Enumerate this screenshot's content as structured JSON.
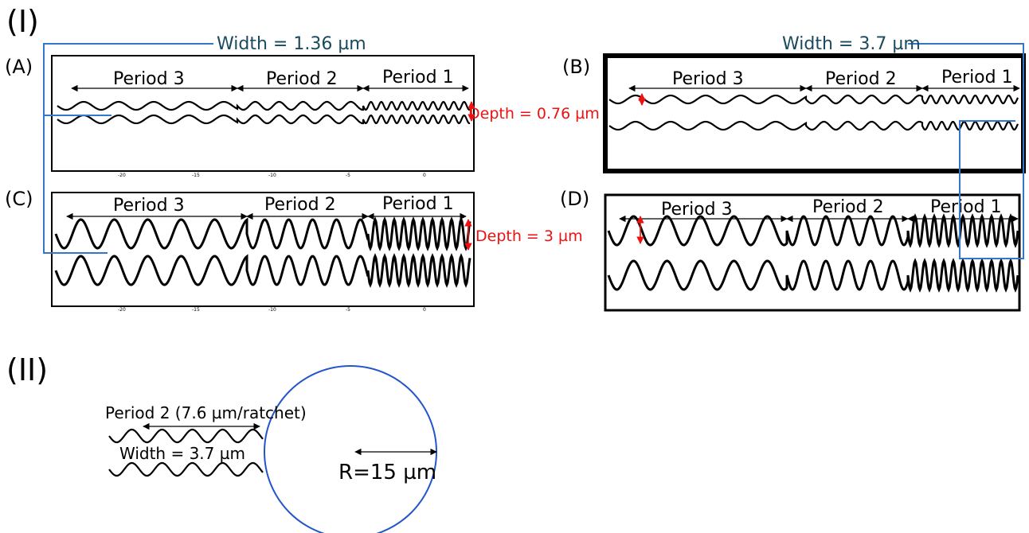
{
  "figure": {
    "section_I_label": "(I)",
    "section_II_label": "(II)",
    "panels": [
      {
        "id": "A",
        "label": "(A)",
        "periods": [
          "Period 3",
          "Period 2",
          "Period 1"
        ],
        "x_ticks": [
          "-20",
          "-15",
          "-10",
          "-5",
          "0"
        ]
      },
      {
        "id": "B",
        "label": "(B)",
        "periods": [
          "Period 3",
          "Period 2",
          "Period 1"
        ]
      },
      {
        "id": "C",
        "label": "(C)",
        "periods": [
          "Period 3",
          "Period 2",
          "Period 1"
        ],
        "x_ticks": [
          "-20",
          "-15",
          "-10",
          "-5",
          "0"
        ]
      },
      {
        "id": "D",
        "label": "(D)",
        "periods": [
          "Period 3",
          "Period 2",
          "Period 1"
        ]
      }
    ],
    "width_labels": {
      "left": "Width = 1.36 µm",
      "right": "Width = 3.7 µm"
    },
    "depth_labels": {
      "shallow": "Depth = 0.76 µm",
      "deep": "Depth = 3 µm"
    },
    "part_II": {
      "period_label": "Period 2 (7.6 µm/ratchet)",
      "width_label": "Width = 3.7 µm",
      "radius_label": "R=15 µm"
    },
    "colors": {
      "width_annotation": "#1a4a5e",
      "depth_annotation": "#ee1111",
      "bracket": "#3377cc",
      "circle": "#2255cc"
    }
  }
}
